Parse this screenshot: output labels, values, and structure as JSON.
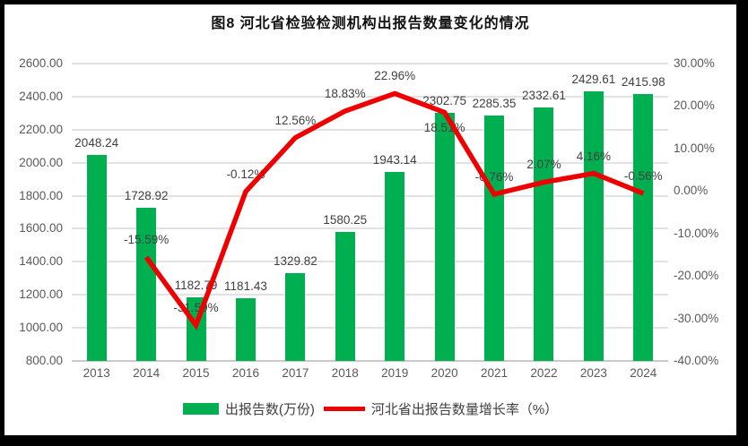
{
  "title": "图8 河北省检验检测机构出报告数量变化的情况",
  "colors": {
    "bar": "#00B050",
    "line": "#EE0000",
    "grid": "#E2E2E2",
    "axis_line": "#C9C9C9",
    "axis_text": "#595959",
    "label_text": "#404040",
    "frame": "#000000",
    "background": "#FFFFFF"
  },
  "legend": {
    "bar_label": "出报告数(万份)",
    "line_label": "河北省出报告数量增长率（%）"
  },
  "chart_data": {
    "type": "combo",
    "title": "图8 河北省检验检测机构出报告数量变化的情况",
    "categories": [
      "2013",
      "2014",
      "2015",
      "2016",
      "2017",
      "2018",
      "2019",
      "2020",
      "2021",
      "2022",
      "2023",
      "2024"
    ],
    "series": [
      {
        "name": "出报告数(万份)",
        "type": "bar",
        "axis": "left",
        "values": [
          2048.24,
          1728.92,
          1182.79,
          1181.43,
          1329.82,
          1580.25,
          1943.14,
          2302.75,
          2285.35,
          2332.61,
          2429.61,
          2415.98
        ],
        "labels": [
          "2048.24",
          "1728.92",
          "1182.79",
          "1181.43",
          "1329.82",
          "1580.25",
          "1943.14",
          "2302.75",
          "2285.35",
          "2332.61",
          "2429.61",
          "2415.98"
        ]
      },
      {
        "name": "河北省出报告数量增长率（%）",
        "type": "line",
        "axis": "right",
        "values": [
          null,
          -15.59,
          -31.59,
          -0.12,
          12.56,
          18.83,
          22.96,
          18.51,
          -0.76,
          2.07,
          4.16,
          -0.56
        ],
        "labels": [
          null,
          "-15.59%",
          "-31.59%",
          "-0.12%",
          "12.56%",
          "18.83%",
          "22.96%",
          "18.51%",
          "-0.76%",
          "2.07%",
          "4.16%",
          "-0.56%"
        ],
        "label_side": [
          null,
          "above",
          "above",
          "above",
          "above",
          "above",
          "above",
          "below",
          "above",
          "above",
          "above",
          "above"
        ]
      }
    ],
    "left_axis": {
      "min": 800,
      "max": 2600,
      "step": 200,
      "tick_labels": [
        "2600.00",
        "2400.00",
        "2200.00",
        "2000.00",
        "1800.00",
        "1600.00",
        "1400.00",
        "1200.00",
        "1000.00",
        "800.00"
      ]
    },
    "right_axis": {
      "min": -40,
      "max": 30,
      "step": 10,
      "tick_labels": [
        "30.00%",
        "20.00%",
        "10.00%",
        "0.00%",
        "-10.00%",
        "-20.00%",
        "-30.00%",
        "-40.00%"
      ]
    },
    "grid": true,
    "legend_position": "bottom"
  }
}
